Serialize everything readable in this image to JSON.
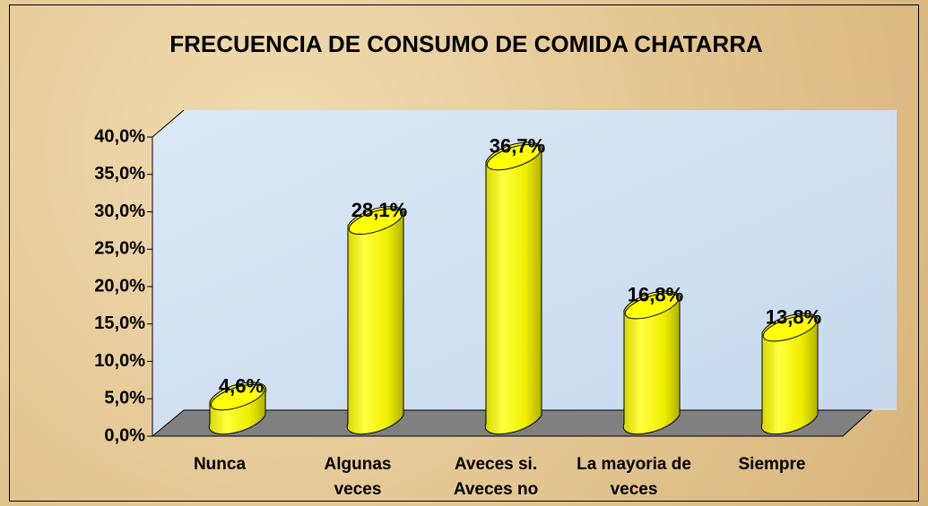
{
  "chart_data": {
    "type": "bar",
    "title": "FRECUENCIA DE CONSUMO DE COMIDA CHATARRA",
    "categories": [
      "Nunca",
      "Algunas veces",
      "Aveces si. Aveces no",
      "La mayoria de veces",
      "Siempre"
    ],
    "values": [
      4.6,
      28.1,
      36.7,
      16.8,
      13.8
    ],
    "value_labels": [
      "4,6%",
      "28,1%",
      "36,7%",
      "16,8%",
      "13,8%"
    ],
    "color": "#ffff00",
    "ylim": [
      0,
      40
    ],
    "yticks": [
      {
        "value": 0,
        "label": "0,0%"
      },
      {
        "value": 5,
        "label": "5,0%"
      },
      {
        "value": 10,
        "label": "10,0%"
      },
      {
        "value": 15,
        "label": "15,0%"
      },
      {
        "value": 20,
        "label": "20,0%"
      },
      {
        "value": 25,
        "label": "25,0%"
      },
      {
        "value": 30,
        "label": "30,0%"
      },
      {
        "value": 35,
        "label": "35,0%"
      },
      {
        "value": 40,
        "label": "40,0%"
      }
    ],
    "grid": false
  }
}
